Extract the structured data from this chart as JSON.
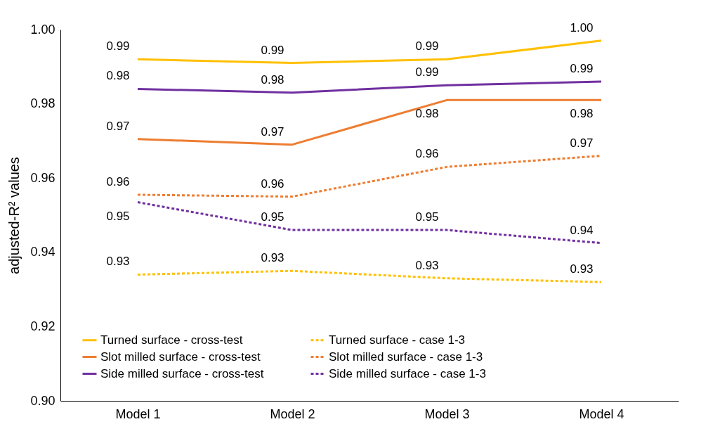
{
  "chart_data": {
    "type": "line",
    "ylabel": "adjusted-R² values",
    "categories": [
      "Model 1",
      "Model 2",
      "Model 3",
      "Model 4"
    ],
    "ylim": [
      0.9,
      1.0
    ],
    "yticks": [
      {
        "value": 0.9,
        "label": "0.90"
      },
      {
        "value": 0.92,
        "label": "0.92"
      },
      {
        "value": 0.94,
        "label": "0.94"
      },
      {
        "value": 0.96,
        "label": "0.96"
      },
      {
        "value": 0.98,
        "label": "0.98"
      },
      {
        "value": 1.0,
        "label": "1.00"
      }
    ],
    "grid": false,
    "legend": "bottom",
    "marker": "none",
    "series": [
      {
        "name": "Turned surface - cross-test",
        "color": "#ffc000",
        "line_style": "solid",
        "values": [
          0.992,
          0.991,
          0.992,
          0.997
        ],
        "value_labels": [
          "0.99",
          "0.99",
          "0.99",
          "1.00"
        ]
      },
      {
        "name": "Turned surface - case 1-3",
        "color": "#ffc000",
        "line_style": "dashed",
        "values": [
          0.934,
          0.935,
          0.933,
          0.932
        ],
        "value_labels": [
          "0.93",
          "0.93",
          "0.93",
          "0.93"
        ]
      },
      {
        "name": "Slot milled surface - cross-test",
        "color": "#ed7d31",
        "line_style": "solid",
        "values": [
          0.9705,
          0.969,
          0.981,
          0.981
        ],
        "value_labels": [
          "0.97",
          "0.97",
          "0.98",
          "0.98"
        ]
      },
      {
        "name": "Slot milled surface - case 1-3",
        "color": "#ed7d31",
        "line_style": "dashed",
        "values": [
          0.9555,
          0.955,
          0.963,
          0.966
        ],
        "value_labels": [
          "0.96",
          "0.96",
          "0.96",
          "0.97"
        ]
      },
      {
        "name": "Side milled surface - cross-test",
        "color": "#7030a0",
        "line_style": "solid",
        "values": [
          0.984,
          0.983,
          0.985,
          0.986
        ],
        "value_labels": [
          "0.98",
          "0.98",
          "0.99",
          "0.99"
        ]
      },
      {
        "name": "Side milled surface - case 1-3",
        "color": "#7030a0",
        "line_style": "dashed",
        "values": [
          0.9535,
          0.946,
          0.946,
          0.9425
        ],
        "value_labels": [
          "0.95",
          "0.95",
          "0.95",
          "0.94"
        ]
      }
    ]
  }
}
